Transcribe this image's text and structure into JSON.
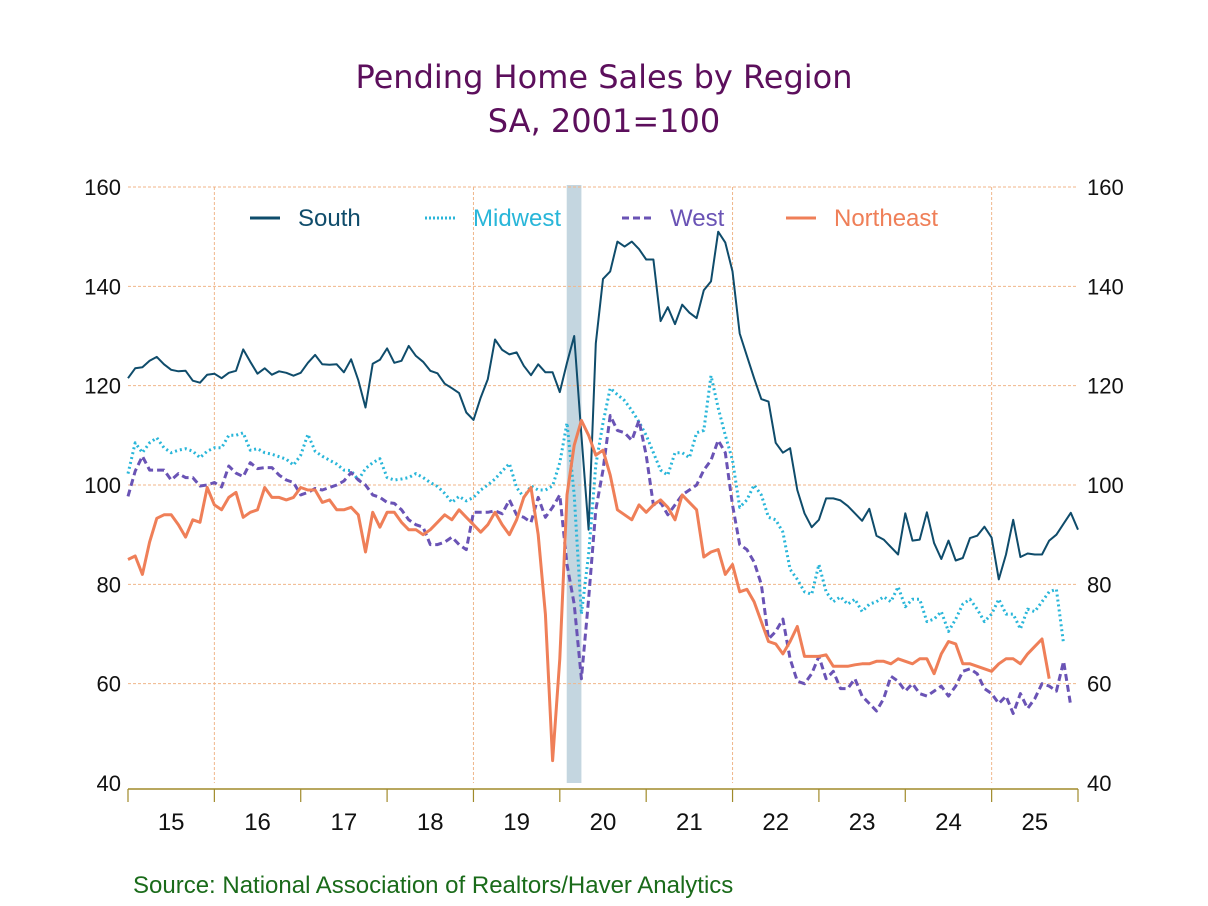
{
  "chart_data": {
    "type": "line",
    "title": "Pending Home Sales by Region",
    "subtitle": "SA, 2001=100",
    "xlabel": "",
    "ylabel": "",
    "ylim": [
      40,
      160
    ],
    "yticks": [
      40,
      60,
      80,
      100,
      120,
      140,
      160
    ],
    "y_axis_sides": "left-and-right",
    "x_start": "2015-01",
    "x_frequency": "monthly",
    "xlim": [
      2015.0,
      2026.0
    ],
    "xtick_labels": [
      "15",
      "16",
      "17",
      "18",
      "19",
      "20",
      "21",
      "22",
      "23",
      "24",
      "25"
    ],
    "grid": true,
    "legend_placement": "top",
    "recession_shading": {
      "start": 2020.08,
      "end": 2020.25,
      "color": "#c4d6e0"
    },
    "series": [
      {
        "name": "South",
        "color": "#0f4c6b",
        "style": "solid",
        "values": [
          121.5,
          123.5,
          123.7,
          125.0,
          125.8,
          124.3,
          123.2,
          122.9,
          123.0,
          121.0,
          120.6,
          122.2,
          122.4,
          121.5,
          122.6,
          123.0,
          127.3,
          124.8,
          122.4,
          123.5,
          122.2,
          122.9,
          122.6,
          122.0,
          122.6,
          124.6,
          126.2,
          124.3,
          124.2,
          124.3,
          122.7,
          125.3,
          121.1,
          115.6,
          124.4,
          125.2,
          127.5,
          124.6,
          125.0,
          128.0,
          126.0,
          124.8,
          123.0,
          122.5,
          120.4,
          119.5,
          118.5,
          114.6,
          113.1,
          117.6,
          121.3,
          129.3,
          127.2,
          126.3,
          126.7,
          124.0,
          122.1,
          124.3,
          122.7,
          122.7,
          118.7,
          124.6,
          130.0,
          110.0,
          91.0,
          128.5,
          141.5,
          143.0,
          149.0,
          148.0,
          149.0,
          147.5,
          145.4,
          145.4,
          133.0,
          135.8,
          132.4,
          136.3,
          134.7,
          133.6,
          139.2,
          141.0,
          151.0,
          148.8,
          143.0,
          130.5,
          126.0,
          121.5,
          117.3,
          116.8,
          108.5,
          106.5,
          107.4,
          99.0,
          94.3,
          91.5,
          93.0,
          97.3,
          97.3,
          96.9,
          95.8,
          94.3,
          92.8,
          95.2,
          89.8,
          89.0,
          87.5,
          86.0,
          94.3,
          88.8,
          89.0,
          94.5,
          88.3,
          85.1,
          88.8,
          84.8,
          85.3,
          89.3,
          89.8,
          91.6,
          89.4,
          81.0,
          86.0,
          93.0,
          85.5,
          86.2,
          86.0,
          86.0,
          88.8,
          90.0,
          92.2,
          94.4,
          91.0
        ]
      },
      {
        "name": "Midwest",
        "color": "#29b6d9",
        "style": "dotted",
        "values": [
          102.3,
          108.5,
          106.5,
          108.5,
          109.5,
          107.5,
          106.5,
          107.0,
          107.3,
          106.8,
          105.5,
          106.8,
          107.5,
          107.5,
          110.0,
          110.0,
          110.5,
          107.0,
          107.3,
          106.5,
          106.2,
          105.7,
          105.2,
          104.0,
          106.0,
          110.2,
          106.8,
          105.8,
          105.0,
          104.2,
          103.0,
          102.9,
          101.0,
          103.3,
          104.5,
          105.3,
          101.5,
          101.0,
          101.2,
          101.5,
          102.3,
          101.5,
          100.5,
          99.7,
          98.3,
          96.5,
          97.7,
          96.8,
          97.5,
          99.0,
          100.0,
          101.2,
          102.8,
          104.3,
          99.5,
          97.5,
          99.8,
          99.0,
          99.0,
          99.8,
          104.5,
          112.5,
          98.0,
          74.0,
          86.0,
          104.0,
          112.5,
          119.5,
          118.2,
          117.0,
          115.0,
          112.7,
          110.0,
          106.5,
          103.0,
          102.0,
          106.5,
          106.5,
          105.5,
          110.5,
          111.0,
          122.0,
          115.5,
          110.0,
          105.0,
          95.5,
          97.0,
          100.0,
          98.0,
          93.5,
          93.0,
          90.5,
          83.0,
          81.0,
          78.5,
          78.0,
          84.0,
          78.5,
          76.5,
          77.5,
          76.0,
          77.0,
          74.5,
          76.0,
          76.5,
          77.5,
          76.5,
          79.5,
          75.5,
          77.0,
          77.0,
          72.5,
          73.0,
          74.5,
          70.5,
          73.0,
          76.0,
          77.0,
          75.0,
          72.5,
          74.0,
          77.0,
          74.0,
          74.0,
          71.0,
          75.0,
          74.5,
          76.5,
          78.5,
          79.0,
          68.0
        ]
      },
      {
        "name": "West",
        "color": "#6a53b5",
        "style": "dashed",
        "values": [
          97.7,
          102.8,
          105.8,
          103.0,
          103.0,
          103.0,
          101.0,
          102.3,
          101.5,
          101.5,
          99.8,
          100.0,
          100.5,
          99.6,
          103.8,
          102.4,
          101.7,
          104.5,
          103.3,
          103.5,
          103.5,
          102.0,
          101.0,
          100.5,
          98.0,
          98.5,
          99.3,
          99.0,
          99.5,
          100.0,
          100.8,
          102.5,
          101.0,
          100.0,
          98.0,
          97.5,
          96.5,
          96.3,
          95.0,
          93.0,
          92.0,
          91.5,
          88.0,
          88.0,
          88.5,
          89.5,
          88.0,
          87.0,
          94.5,
          94.5,
          94.5,
          94.8,
          94.2,
          97.0,
          94.0,
          93.5,
          92.5,
          97.5,
          93.5,
          95.5,
          98.0,
          84.0,
          76.0,
          61.0,
          77.0,
          95.0,
          103.0,
          114.0,
          111.0,
          110.5,
          109.0,
          113.0,
          106.0,
          96.0,
          96.5,
          94.0,
          96.0,
          98.0,
          99.0,
          100.0,
          103.0,
          105.0,
          109.0,
          106.5,
          96.0,
          88.0,
          87.0,
          84.5,
          80.0,
          69.0,
          70.5,
          73.0,
          65.0,
          60.5,
          60.0,
          62.0,
          65.5,
          61.0,
          62.5,
          59.0,
          59.0,
          61.0,
          57.5,
          56.0,
          54.5,
          57.0,
          61.5,
          60.5,
          58.5,
          60.0,
          58.0,
          57.5,
          58.5,
          59.5,
          57.5,
          59.5,
          62.5,
          63.0,
          62.0,
          59.0,
          58.0,
          56.0,
          57.5,
          54.0,
          58.0,
          55.0,
          57.0,
          60.0,
          59.5,
          58.5,
          64.5,
          55.5
        ]
      },
      {
        "name": "Northeast",
        "color": "#ef7f58",
        "style": "solid",
        "values": [
          85.0,
          85.7,
          82.0,
          88.5,
          93.3,
          94.0,
          94.0,
          92.0,
          89.5,
          93.0,
          92.5,
          99.5,
          96.0,
          95.0,
          97.5,
          98.5,
          93.5,
          94.5,
          95.0,
          99.5,
          97.5,
          97.5,
          97.0,
          97.5,
          99.5,
          99.0,
          99.0,
          96.5,
          97.0,
          95.0,
          95.0,
          95.5,
          94.0,
          86.5,
          94.5,
          91.5,
          94.5,
          94.5,
          92.5,
          91.0,
          91.0,
          90.0,
          91.0,
          92.5,
          94.0,
          93.0,
          95.0,
          93.5,
          92.0,
          90.5,
          92.0,
          94.5,
          92.0,
          90.0,
          93.0,
          97.5,
          99.5,
          90.0,
          74.0,
          44.5,
          65.0,
          98.0,
          108.0,
          113.0,
          110.0,
          106.0,
          107.0,
          102.0,
          95.0,
          94.0,
          93.0,
          96.0,
          94.5,
          96.0,
          97.0,
          95.5,
          93.0,
          98.0,
          96.5,
          95.0,
          85.5,
          86.5,
          87.0,
          82.0,
          84.0,
          78.5,
          79.0,
          76.5,
          72.5,
          68.5,
          68.0,
          66.0,
          68.5,
          71.5,
          65.5,
          65.5,
          65.5,
          65.8,
          63.5,
          63.5,
          63.5,
          63.8,
          64.0,
          64.0,
          64.5,
          64.5,
          64.0,
          65.0,
          64.5,
          64.0,
          65.0,
          65.0,
          62.0,
          66.0,
          68.5,
          68.0,
          64.0,
          64.0,
          63.5,
          63.0,
          62.5,
          64.0,
          65.0,
          65.0,
          64.0,
          66.0,
          67.5,
          69.0,
          61.0
        ]
      }
    ]
  },
  "legend": {
    "items": [
      "South",
      "Midwest",
      "West",
      "Northeast"
    ]
  },
  "source": "Source:  National Association of Realtors/Haver Analytics"
}
